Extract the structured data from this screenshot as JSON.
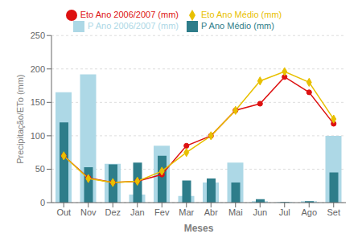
{
  "chart_data": {
    "type": "bar",
    "xlabel": "Meses",
    "ylabel": "Precipitação/ETo (mm)",
    "categories": [
      "Out",
      "Nov",
      "Dez",
      "Jan",
      "Fev",
      "Mar",
      "Abr",
      "Mai",
      "Jun",
      "Jul",
      "Ago",
      "Set"
    ],
    "series": [
      {
        "name": "P Ano 2006/2007 (mm)",
        "type": "bar",
        "color": "#add8e6",
        "values": [
          165,
          192,
          58,
          12,
          85,
          10,
          30,
          60,
          2,
          1,
          2,
          100
        ]
      },
      {
        "name": "P Ano Médio (mm)",
        "type": "bar",
        "color": "#2e7d8a",
        "values": [
          120,
          53,
          57,
          60,
          70,
          33,
          36,
          30,
          5,
          1,
          2,
          45
        ]
      },
      {
        "name": "Eto Ano 2006/2007 (mm)",
        "type": "line",
        "color": "#dd1111",
        "marker": "circle",
        "values": [
          70,
          37,
          30,
          32,
          42,
          85,
          100,
          138,
          148,
          188,
          165,
          118
        ]
      },
      {
        "name": "Eto Ano Médio (mm)",
        "type": "line",
        "color": "#e8c000",
        "marker": "diamond",
        "values": [
          70,
          36,
          30,
          32,
          47,
          75,
          100,
          138,
          182,
          196,
          180,
          125
        ]
      }
    ],
    "ylim": [
      0,
      250
    ],
    "yticks": [
      0,
      50,
      100,
      150,
      200,
      250
    ],
    "grid": true,
    "legend": "top"
  }
}
